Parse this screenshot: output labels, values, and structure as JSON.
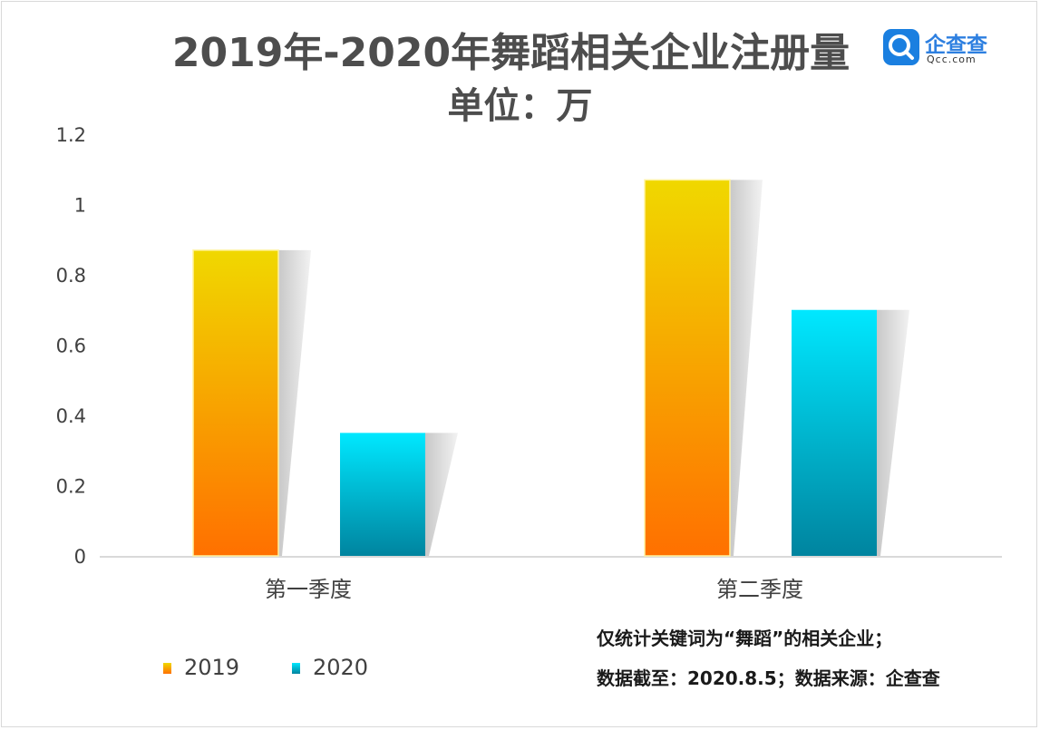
{
  "title": "2019年-2020年舞蹈相关企业注册量",
  "subtitle": "单位：万",
  "logo": {
    "name": "企查查",
    "domain": "Qcc.com"
  },
  "notes": [
    "仅统计关键词为“舞蹈”的相关企业；",
    "数据截至：2020.8.5；数据来源：企查查"
  ],
  "colors": {
    "s2019_top": "#f0d800",
    "s2019_bottom": "#ff7000",
    "s2020_top": "#00e8ff",
    "s2020_bottom": "#00849f"
  },
  "chart_data": {
    "type": "bar",
    "title": "2019年-2020年舞蹈相关企业注册量",
    "subtitle": "单位：万",
    "categories": [
      "第一季度",
      "第二季度"
    ],
    "series": [
      {
        "name": "2019",
        "values": [
          0.87,
          1.07
        ]
      },
      {
        "name": "2020",
        "values": [
          0.35,
          0.7
        ]
      }
    ],
    "yticks": [
      "0",
      "0.2",
      "0.4",
      "0.6",
      "0.8",
      "1",
      "1.2"
    ],
    "ylim": [
      0,
      1.2
    ],
    "legend_position": "bottom-left",
    "grid": false
  }
}
